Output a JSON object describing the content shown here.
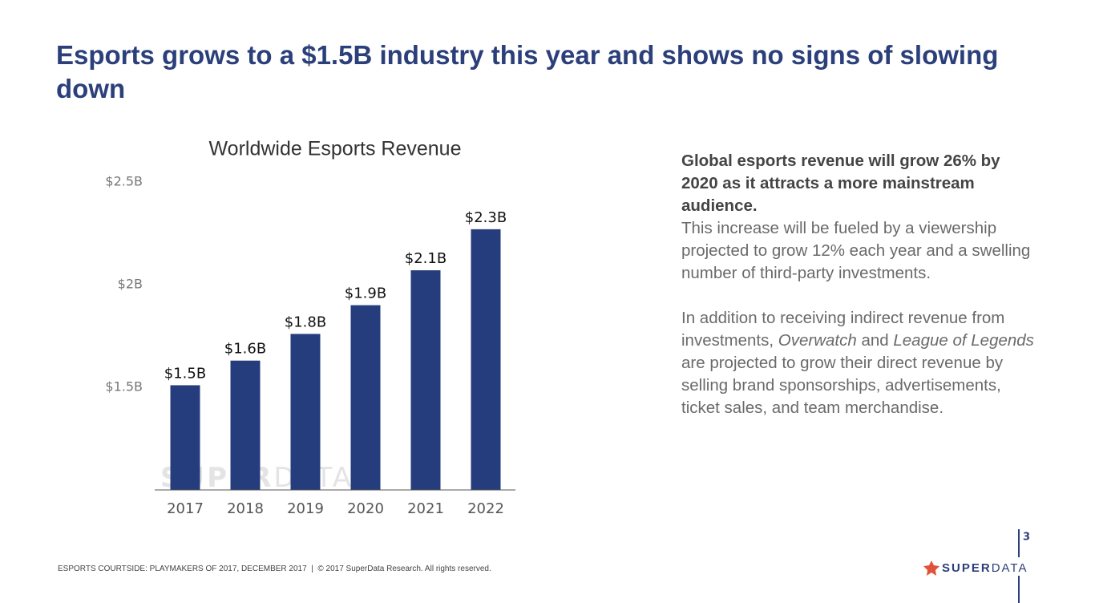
{
  "header": {
    "title": "Esports grows to a $1.5B industry this year and shows no signs of slowing down"
  },
  "chart_data": {
    "type": "bar",
    "title": "Worldwide Esports Revenue",
    "categories": [
      "2017",
      "2018",
      "2019",
      "2020",
      "2021",
      "2022"
    ],
    "values": [
      1.51,
      1.63,
      1.76,
      1.9,
      2.07,
      2.27
    ],
    "value_labels": [
      "$1.5B",
      "$1.6B",
      "$1.8B",
      "$1.9B",
      "$2.1B",
      "$2.3B"
    ],
    "color": "#253d7c",
    "grid": false,
    "ylim": [
      1,
      2.5
    ],
    "yticks": [
      {
        "value": 1.5,
        "label": "$1.5B"
      },
      {
        "value": 2,
        "label": "$2B"
      },
      {
        "value": 2.5,
        "label": "$2.5B"
      }
    ],
    "watermark": [
      "SUPER",
      "DATA"
    ]
  },
  "text": {
    "lead": "Global esports revenue will grow 26% by 2020 as it attracts a more mainstream audience.",
    "body": "This increase will be fueled by a viewership projected to grow 12% each year and a swelling number of third-party investments.",
    "paragraph2": [
      "In addition to receiving indirect revenue from investments, ",
      "Overwatch",
      " and ",
      "League of Legends",
      " are projected to grow their direct revenue by selling brand sponsorships, advertisements, ticket sales, and team merchandise."
    ]
  },
  "footer": {
    "credit": "ESPORTS COURTSIDE: PLAYMAKERS OF 2017, DECEMBER 2017  |  © 2017 SuperData Research. All rights reserved.",
    "page_number": "3",
    "logo": [
      "SUPER",
      "DATA"
    ]
  }
}
